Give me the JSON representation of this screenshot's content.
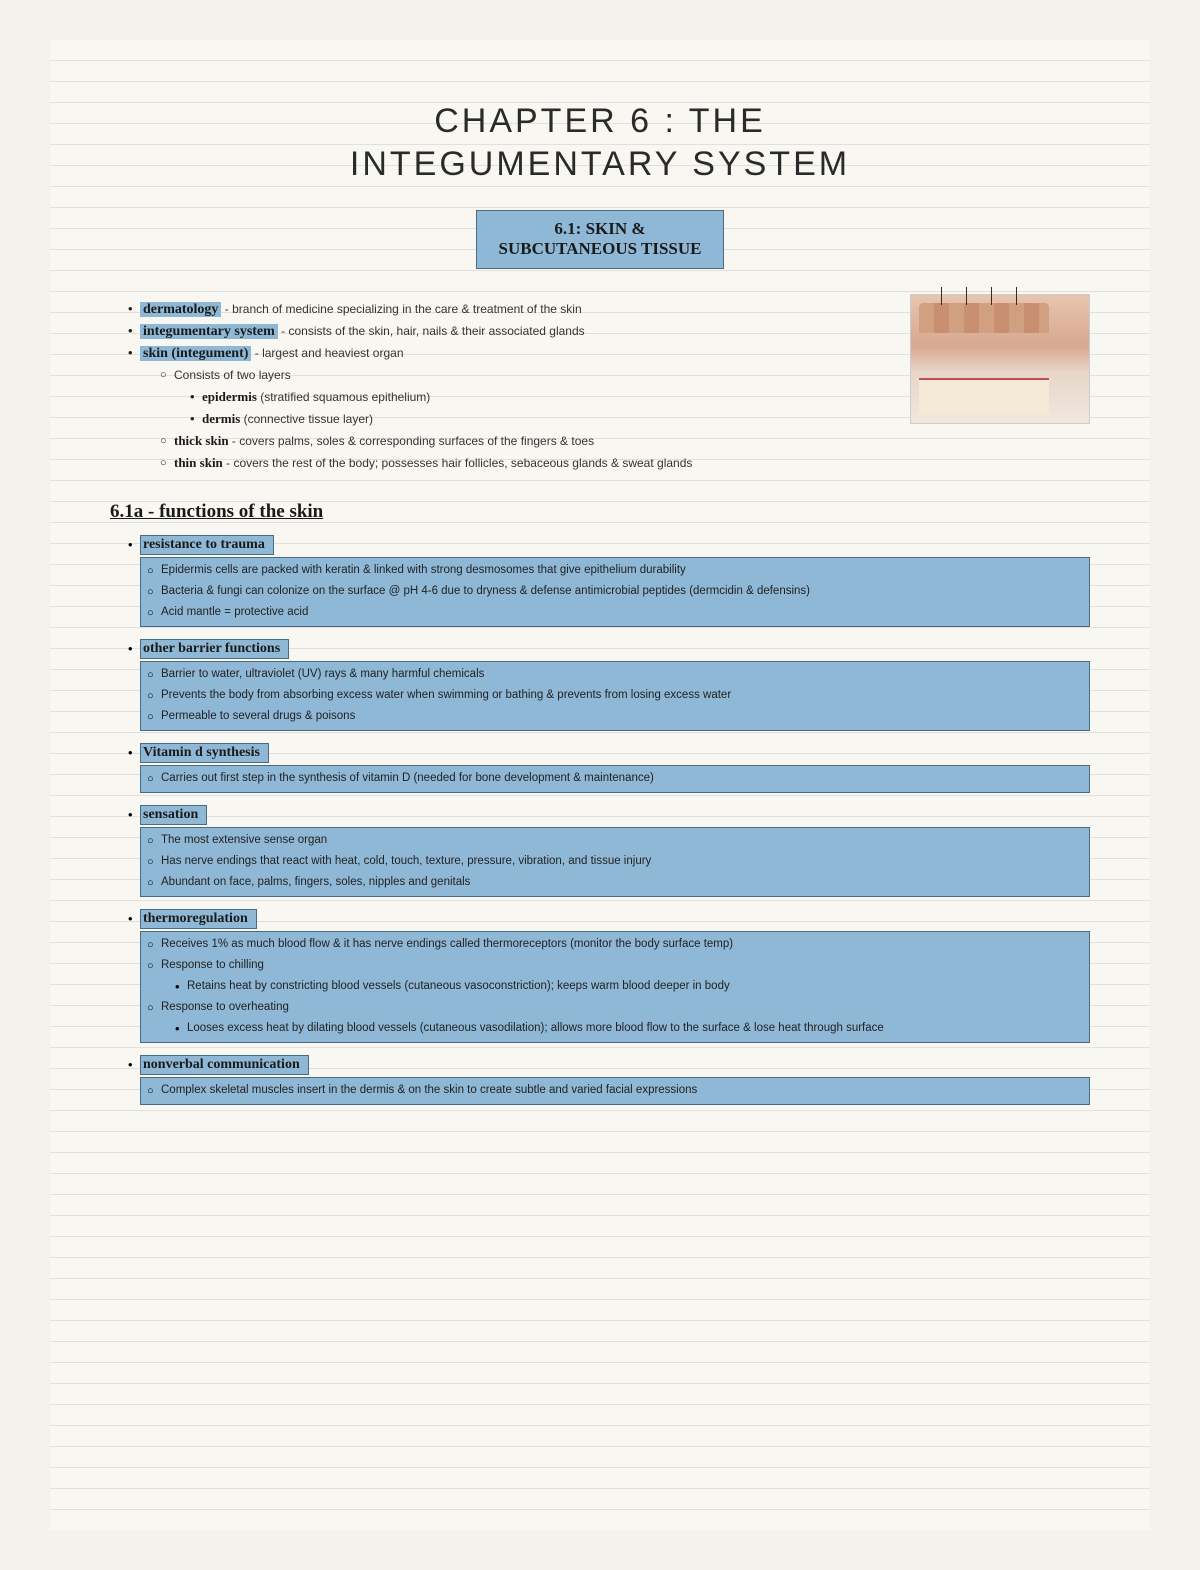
{
  "title_line1": "CHAPTER 6 : THE",
  "title_line2": "INTEGUMENTARY SYSTEM",
  "section_box_line1": "6.1: SKIN &",
  "section_box_line2": "SUBCUTANEOUS TISSUE",
  "colors": {
    "highlight": "#8fb8d6",
    "highlight_border": "#4a6a80",
    "paper_bg": "#f9f7f2",
    "page_bg": "#f5f2ec",
    "rule_line": "rgba(120,120,120,0.18)"
  },
  "terms": {
    "dermatology": "dermatology",
    "dermatology_def": " - branch of medicine specializing in the care & treatment of the skin",
    "integ_sys": "integumentary system",
    "integ_sys_def": " - consists of the skin, hair, nails & their associated glands",
    "skin": "skin (integument)",
    "skin_def": " - largest and heaviest organ",
    "skin_sub1": "Consists of two layers",
    "epidermis": "epidermis",
    "epidermis_def": " (stratified squamous epithelium)",
    "dermis": "dermis",
    "dermis_def": " (connective tissue layer)",
    "thick": "thick skin",
    "thick_def": " - covers palms, soles & corresponding surfaces of the fingers & toes",
    "thin": "thin skin",
    "thin_def": " - covers the rest of the body; possesses hair follicles, sebaceous glands & sweat glands"
  },
  "subheading": "6.1a - functions of the skin",
  "functions": [
    {
      "title": "resistance to trauma",
      "lines": [
        "Epidermis cells are packed with keratin & linked with strong desmosomes that give epithelium durability",
        "Bacteria & fungi can colonize on the surface @ pH 4-6 due to dryness & defense antimicrobial peptides (dermcidin & defensins)",
        "Acid mantle = protective acid"
      ]
    },
    {
      "title": "other barrier functions",
      "lines": [
        "Barrier to water, ultraviolet (UV) rays & many harmful chemicals",
        "Prevents the body from absorbing excess water when swimming or bathing & prevents from losing excess water",
        "Permeable to several drugs & poisons"
      ]
    },
    {
      "title": "Vitamin d synthesis",
      "lines": [
        "Carries out first step in the synthesis of vitamin D (needed for bone development & maintenance)"
      ]
    },
    {
      "title": "sensation",
      "lines": [
        "The most extensive sense organ",
        "Has nerve endings that react with heat, cold, touch, texture, pressure, vibration, and tissue injury",
        "Abundant on face, palms, fingers, soles, nipples and genitals"
      ]
    },
    {
      "title": "thermoregulation",
      "lines_complex": [
        {
          "level": 1,
          "text": "Receives 1% as much blood flow & it has nerve endings called thermoreceptors (monitor the body surface temp)"
        },
        {
          "level": 1,
          "text": "Response to chilling"
        },
        {
          "level": 2,
          "text": "Retains heat by constricting blood vessels (cutaneous vasoconstriction); keeps warm blood deeper in body"
        },
        {
          "level": 1,
          "text": "Response to overheating"
        },
        {
          "level": 2,
          "text": "Looses excess heat by dilating blood vessels (cutaneous vasodilation); allows more blood flow to the surface & lose heat through surface"
        }
      ]
    },
    {
      "title": "nonverbal communication",
      "lines": [
        "Complex skeletal muscles insert in the dermis & on the skin to create subtle and varied facial expressions"
      ]
    }
  ]
}
